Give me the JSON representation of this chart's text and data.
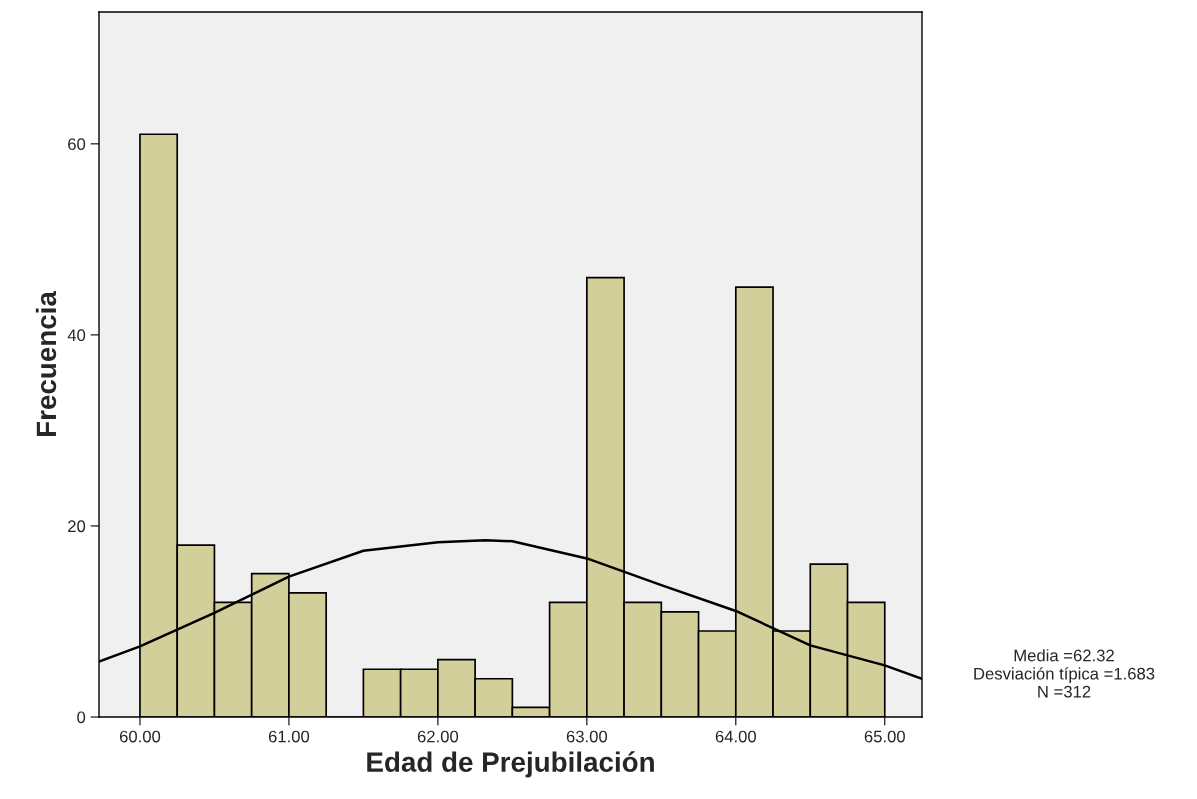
{
  "chart_data": {
    "type": "histogram",
    "xlabel": "Edad de Prejubilación",
    "ylabel": "Frecuencia",
    "bins": [
      60.0,
      60.25,
      60.5,
      60.75,
      61.0,
      61.25,
      61.5,
      61.75,
      62.0,
      62.25,
      62.5,
      62.75,
      63.0,
      63.25,
      63.5,
      63.75,
      64.0,
      64.25,
      64.5,
      64.75,
      65.0
    ],
    "values": [
      61,
      18,
      12,
      15,
      13,
      0,
      5,
      5,
      6,
      4,
      1,
      12,
      46,
      12,
      11,
      9,
      45,
      9,
      16,
      12
    ],
    "color": "#d3cf9b",
    "series": [
      {
        "type": "line",
        "color": "#000000",
        "x": [
          59.725,
          60.0,
          60.5,
          61.0,
          61.5,
          62.0,
          62.32,
          62.5,
          63.0,
          63.5,
          64.0,
          64.5,
          65.0,
          65.25
        ],
        "values": [
          5.8,
          7.4,
          10.9,
          14.7,
          17.4,
          18.3,
          18.5,
          18.4,
          16.6,
          13.8,
          11.1,
          7.5,
          5.4,
          4.0
        ]
      }
    ],
    "xlim": [
      59.725,
      65.25
    ],
    "ylim": [
      0,
      73.8
    ],
    "xticks": [
      {
        "value": 60,
        "label": "60.00"
      },
      {
        "value": 61,
        "label": "61.00"
      },
      {
        "value": 62,
        "label": "62.00"
      },
      {
        "value": 63,
        "label": "63.00"
      },
      {
        "value": 64,
        "label": "64.00"
      },
      {
        "value": 65,
        "label": "65.00"
      }
    ],
    "yticks": [
      0,
      20,
      40,
      60
    ],
    "grid": false,
    "legend": false,
    "annotations": [
      "Media =62.32\nDesviación típica =1.683\nN =312"
    ]
  }
}
